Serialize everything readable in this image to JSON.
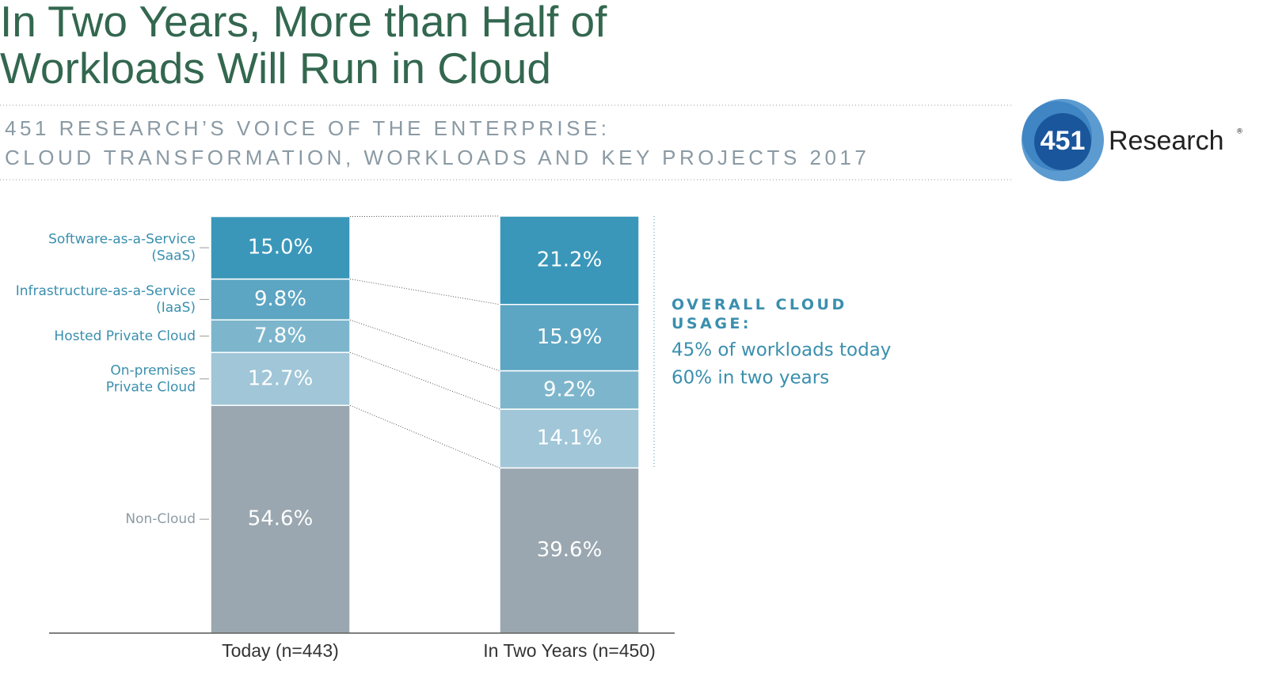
{
  "chart_data": {
    "type": "stacked_bar",
    "title": "In Two Years, More than Half of\nWorkloads Will Run in Cloud",
    "subtitle": "451 RESEARCH’S VOICE OF THE ENTERPRISE:\nCLOUD TRANSFORMATION, WORKLOADS AND KEY PROJECTS 2017",
    "categories": [
      "Today (n=443)",
      "In Two Years (n=450)"
    ],
    "ylim": [
      0,
      100
    ],
    "series": [
      {
        "name": "Non-Cloud",
        "color": "#9aa7b0",
        "values": [
          54.6,
          39.6
        ],
        "value_labels": [
          "54.6%",
          "39.6%"
        ]
      },
      {
        "name": "On-premises\nPrivate Cloud",
        "color": "#a0c6d8",
        "values": [
          12.7,
          14.1
        ],
        "value_labels": [
          "12.7%",
          "14.1%"
        ]
      },
      {
        "name": "Hosted Private Cloud",
        "color": "#7db6cc",
        "values": [
          7.8,
          9.2
        ],
        "value_labels": [
          "7.8%",
          "9.2%"
        ]
      },
      {
        "name": "Infrastructure-as-a-Service\n(IaaS)",
        "color": "#5ca5c3",
        "values": [
          9.8,
          15.9
        ],
        "value_labels": [
          "9.8%",
          "15.9%"
        ]
      },
      {
        "name": "Software-as-a-Service\n(SaaS)",
        "color": "#3a97b9",
        "values": [
          15.0,
          21.2
        ],
        "value_labels": [
          "15.0%",
          "21.2%"
        ]
      }
    ],
    "annotation": {
      "heading": "OVERALL CLOUD\nUSAGE:",
      "lines": [
        "45% of workloads today",
        "60% in two years"
      ]
    },
    "logo": {
      "number": "451",
      "name": "Research",
      "mark": "®"
    }
  }
}
